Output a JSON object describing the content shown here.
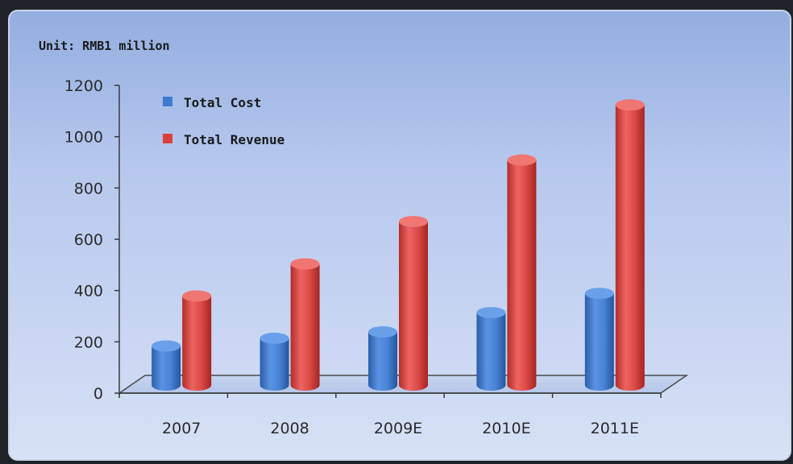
{
  "colors": {
    "cost": "#3f7ad0",
    "revenue": "#d9413d",
    "background": "#b7c8ee"
  },
  "chart_data": {
    "type": "bar",
    "unit_label": "Unit: RMB1 million",
    "categories": [
      "2007",
      "2008",
      "2009E",
      "2010E",
      "2011E"
    ],
    "series": [
      {
        "name": "Total Cost",
        "values": [
          165,
          195,
          220,
          295,
          370
        ]
      },
      {
        "name": "Total Revenue",
        "values": [
          360,
          485,
          650,
          890,
          1105
        ]
      }
    ],
    "y_ticks": [
      "0",
      "200",
      "400",
      "600",
      "800",
      "1000",
      "1200"
    ],
    "ylim": [
      0,
      1200
    ],
    "grid": false,
    "legend": "top-left"
  }
}
